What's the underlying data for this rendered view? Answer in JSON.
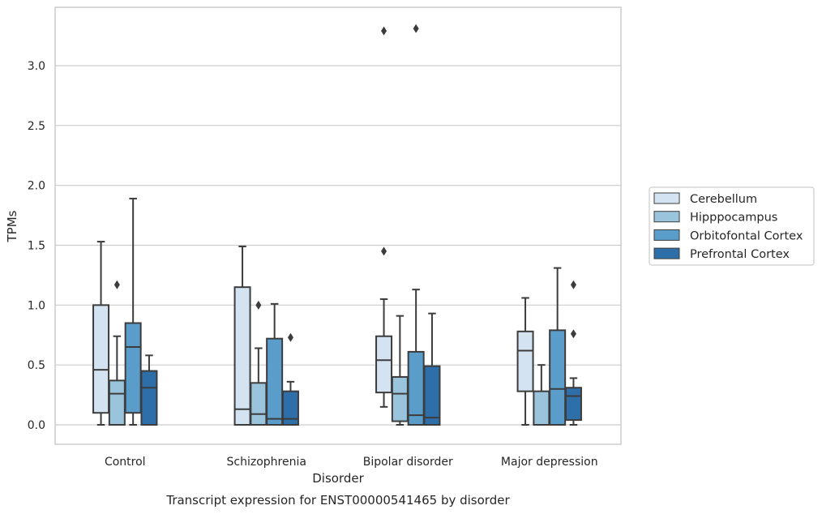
{
  "chart_data": {
    "type": "box",
    "title": "",
    "caption": "Transcript expression for ENST00000541465 by disorder",
    "xlabel": "Disorder",
    "ylabel": "TPMs",
    "ylim": [
      -0.16,
      3.5
    ],
    "yticks": [
      0.0,
      0.5,
      1.0,
      1.5,
      2.0,
      2.5,
      3.0
    ],
    "ytick_labels": [
      "0.0",
      "0.5",
      "1.0",
      "1.5",
      "2.0",
      "2.5",
      "3.0"
    ],
    "grid": "horizontal",
    "legend_position": "right",
    "categories": [
      "Control",
      "Schizophrenia",
      "Bipolar disorder",
      "Major depression"
    ],
    "series": [
      {
        "name": "Cerebellum",
        "color": "#d3e3f2",
        "boxes": [
          {
            "whislo": 0.0,
            "q1": 0.1,
            "med": 0.46,
            "q3": 1.0,
            "whishi": 1.53,
            "fliers": []
          },
          {
            "whislo": 0.0,
            "q1": 0.0,
            "med": 0.13,
            "q3": 1.15,
            "whishi": 1.49,
            "fliers": []
          },
          {
            "whislo": 0.15,
            "q1": 0.27,
            "med": 0.54,
            "q3": 0.74,
            "whishi": 1.05,
            "fliers": [
              1.45,
              3.29
            ]
          },
          {
            "whislo": 0.0,
            "q1": 0.28,
            "med": 0.62,
            "q3": 0.78,
            "whishi": 1.06,
            "fliers": []
          }
        ]
      },
      {
        "name": "Hipppocampus",
        "color": "#9ac3dc",
        "boxes": [
          {
            "whislo": 0.0,
            "q1": 0.0,
            "med": 0.26,
            "q3": 0.37,
            "whishi": 0.74,
            "fliers": [
              1.17
            ]
          },
          {
            "whislo": 0.0,
            "q1": 0.0,
            "med": 0.09,
            "q3": 0.35,
            "whishi": 0.64,
            "fliers": [
              1.0
            ]
          },
          {
            "whislo": 0.0,
            "q1": 0.03,
            "med": 0.26,
            "q3": 0.4,
            "whishi": 0.91,
            "fliers": []
          },
          {
            "whislo": 0.0,
            "q1": 0.0,
            "med": 0.0,
            "q3": 0.28,
            "whishi": 0.5,
            "fliers": []
          }
        ]
      },
      {
        "name": "Orbitofontal Cortex",
        "color": "#5a9dca",
        "boxes": [
          {
            "whislo": 0.0,
            "q1": 0.1,
            "med": 0.65,
            "q3": 0.85,
            "whishi": 1.89,
            "fliers": []
          },
          {
            "whislo": 0.0,
            "q1": 0.0,
            "med": 0.05,
            "q3": 0.72,
            "whishi": 1.01,
            "fliers": []
          },
          {
            "whislo": 0.0,
            "q1": 0.0,
            "med": 0.08,
            "q3": 0.61,
            "whishi": 1.13,
            "fliers": [
              3.31
            ]
          },
          {
            "whislo": 0.0,
            "q1": 0.0,
            "med": 0.3,
            "q3": 0.79,
            "whishi": 1.31,
            "fliers": []
          }
        ]
      },
      {
        "name": "Prefrontal Cortex",
        "color": "#2e6ea9",
        "boxes": [
          {
            "whislo": 0.0,
            "q1": 0.0,
            "med": 0.31,
            "q3": 0.45,
            "whishi": 0.58,
            "fliers": []
          },
          {
            "whislo": 0.0,
            "q1": 0.0,
            "med": 0.05,
            "q3": 0.28,
            "whishi": 0.36,
            "fliers": [
              0.73
            ]
          },
          {
            "whislo": 0.0,
            "q1": 0.0,
            "med": 0.06,
            "q3": 0.49,
            "whishi": 0.93,
            "fliers": []
          },
          {
            "whislo": 0.0,
            "q1": 0.04,
            "med": 0.24,
            "q3": 0.31,
            "whishi": 0.39,
            "fliers": [
              0.76,
              1.17
            ]
          }
        ]
      }
    ],
    "colors": {
      "edge": "#3c3c3c",
      "grid": "#cccccc",
      "frame": "#cccccc",
      "text": "#262626"
    }
  }
}
